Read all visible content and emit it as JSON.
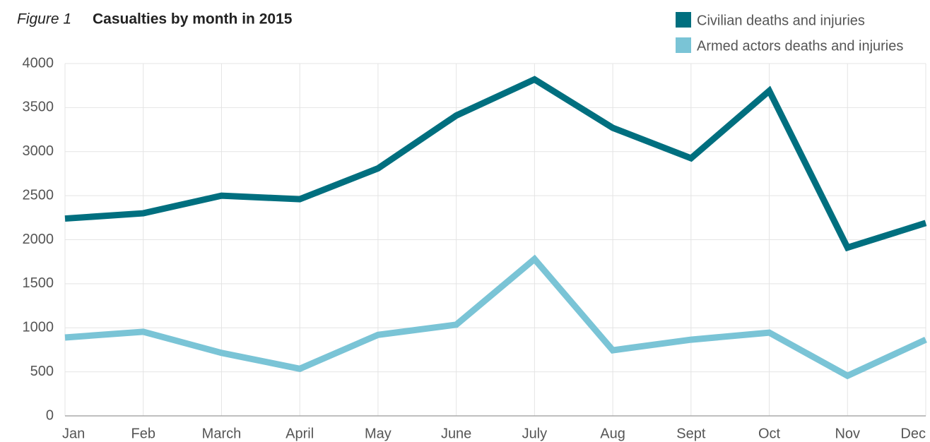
{
  "chart_data": {
    "type": "line",
    "figure_label": "Figure 1",
    "title": "Casualties by month in 2015",
    "categories": [
      "Jan",
      "Feb",
      "March",
      "April",
      "May",
      "June",
      "July",
      "Aug",
      "Sept",
      "Oct",
      "Nov",
      "Dec"
    ],
    "series": [
      {
        "name": "Civilian deaths and injuries",
        "color": "#006f7f",
        "values": [
          2240,
          2300,
          2500,
          2460,
          2810,
          3410,
          3820,
          3270,
          2925,
          3690,
          1910,
          2190
        ]
      },
      {
        "name": "Armed actors deaths and injuries",
        "color": "#7ac4d6",
        "values": [
          890,
          955,
          715,
          535,
          920,
          1035,
          1780,
          745,
          865,
          945,
          455,
          865
        ]
      }
    ],
    "ylim": [
      0,
      4000
    ],
    "yticks": [
      0,
      500,
      1000,
      1500,
      2000,
      2500,
      3000,
      3500,
      4000
    ],
    "grid": true
  }
}
